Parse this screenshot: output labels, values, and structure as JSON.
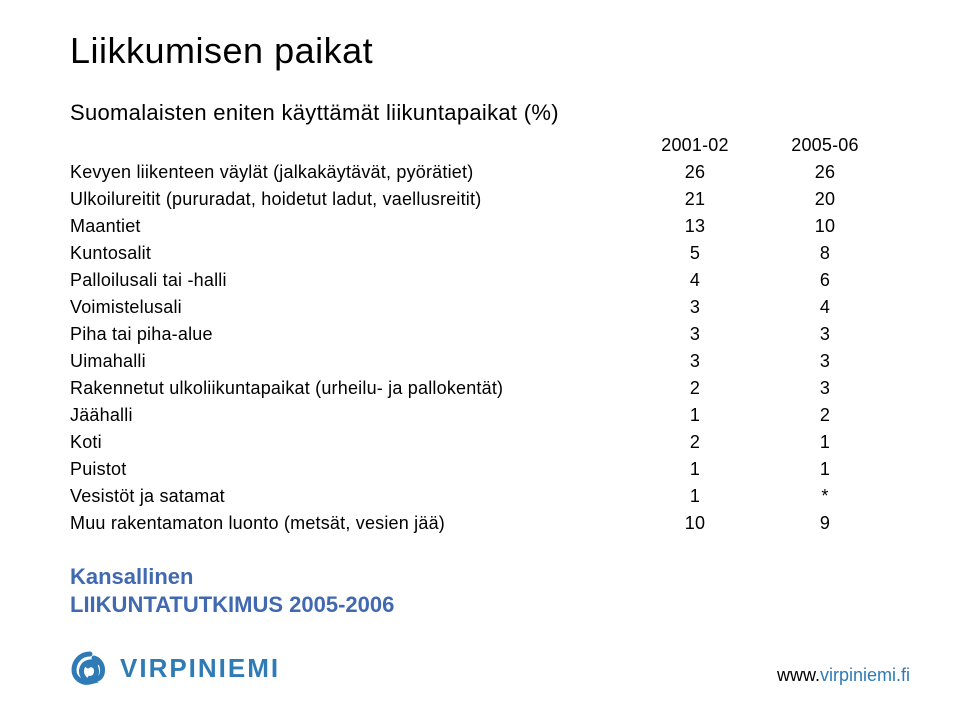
{
  "colors": {
    "text": "#000000",
    "accent": "#2f7bb5",
    "source_blue": "#4169b2",
    "background": "#ffffff"
  },
  "typography": {
    "title_fontsize": 36,
    "subtitle_fontsize": 22,
    "table_fontsize": 18,
    "source_fontsize": 22,
    "brand_fontsize": 26,
    "url_fontsize": 18
  },
  "title": "Liikkumisen paikat",
  "subtitle": "Suomalaisten eniten käyttämät liikuntapaikat (%)",
  "table": {
    "columns": [
      "2001-02",
      "2005-06"
    ],
    "rows": [
      {
        "label": "Kevyen liikenteen väylät (jalkakäytävät, pyörätiet)",
        "c1": "26",
        "c2": "26"
      },
      {
        "label": "Ulkoilureitit (pururadat, hoidetut ladut, vaellusreitit)",
        "c1": "21",
        "c2": "20"
      },
      {
        "label": "Maantiet",
        "c1": "13",
        "c2": "10"
      },
      {
        "label": "Kuntosalit",
        "c1": "5",
        "c2": "8"
      },
      {
        "label": "Palloilusali tai -halli",
        "c1": "4",
        "c2": "6"
      },
      {
        "label": "Voimistelusali",
        "c1": "3",
        "c2": "4"
      },
      {
        "label": "Piha tai piha-alue",
        "c1": "3",
        "c2": "3"
      },
      {
        "label": "Uimahalli",
        "c1": "3",
        "c2": "3"
      },
      {
        "label": "Rakennetut ulkoliikuntapaikat (urheilu- ja pallokentät)",
        "c1": "2",
        "c2": "3"
      },
      {
        "label": "Jäähalli",
        "c1": "1",
        "c2": "2"
      },
      {
        "label": "Koti",
        "c1": "2",
        "c2": "1"
      },
      {
        "label": "Puistot",
        "c1": "1",
        "c2": "1"
      },
      {
        "label": "Vesistöt ja satamat",
        "c1": "1",
        "c2": "*"
      },
      {
        "label": "Muu rakentamaton luonto (metsät, vesien jää)",
        "c1": "10",
        "c2": "9"
      }
    ]
  },
  "source_line1": "Kansallinen",
  "source_line2": "LIIKUNTATUTKIMUS 2005-2006",
  "brand_text": "VIRPINIEMI",
  "url_www": "www.",
  "url_domain": "virpiniemi.fi"
}
